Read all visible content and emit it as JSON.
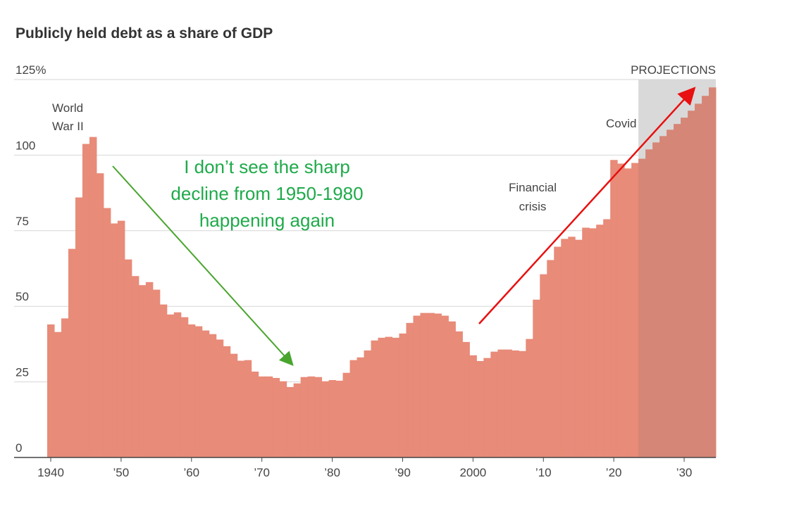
{
  "chart_data": {
    "type": "bar",
    "title": "Publicly held debt as a share of GDP",
    "x": [
      1940,
      1941,
      1942,
      1943,
      1944,
      1945,
      1946,
      1947,
      1948,
      1949,
      1950,
      1951,
      1952,
      1953,
      1954,
      1955,
      1956,
      1957,
      1958,
      1959,
      1960,
      1961,
      1962,
      1963,
      1964,
      1965,
      1966,
      1967,
      1968,
      1969,
      1970,
      1971,
      1972,
      1973,
      1974,
      1975,
      1976,
      1977,
      1978,
      1979,
      1980,
      1981,
      1982,
      1983,
      1984,
      1985,
      1986,
      1987,
      1988,
      1989,
      1990,
      1991,
      1992,
      1993,
      1994,
      1995,
      1996,
      1997,
      1998,
      1999,
      2000,
      2001,
      2002,
      2003,
      2004,
      2005,
      2006,
      2007,
      2008,
      2009,
      2010,
      2011,
      2012,
      2013,
      2014,
      2015,
      2016,
      2017,
      2018,
      2019,
      2020,
      2021,
      2022,
      2023,
      2024,
      2025,
      2026,
      2027,
      2028,
      2029,
      2030,
      2031,
      2032,
      2033,
      2034
    ],
    "values": [
      44,
      41.5,
      46,
      69,
      86,
      103.7,
      106,
      94,
      82.5,
      77.4,
      78.3,
      65.5,
      60,
      57,
      58,
      55.5,
      50.6,
      47.3,
      48,
      46.4,
      44,
      43.4,
      42,
      40.8,
      39,
      36.8,
      34.3,
      32,
      32.2,
      28.4,
      26.8,
      26.8,
      26.3,
      25.2,
      23.3,
      24.5,
      26.6,
      26.8,
      26.6,
      25.2,
      25.6,
      25.4,
      28,
      32.2,
      33.1,
      35.4,
      38.7,
      39.6,
      39.9,
      39.6,
      41,
      44.5,
      46.9,
      47.8,
      47.8,
      47.6,
      46.9,
      45,
      41.7,
      38.2,
      33.8,
      31.9,
      32.9,
      35,
      35.7,
      35.7,
      35.4,
      35.2,
      39.2,
      52.2,
      60.6,
      65.3,
      69.7,
      72.3,
      73,
      72,
      76,
      75.8,
      77,
      78.8,
      98.4,
      97.2,
      95.6,
      97.4,
      98.8,
      101.9,
      104.2,
      106.3,
      108.4,
      110.3,
      112.4,
      114.7,
      117,
      119.6,
      122.4
    ],
    "color": "#e88b79",
    "xlim": [
      1939.5,
      2034.5
    ],
    "xticks": [
      1940,
      {
        "value": 1950,
        "label": "’50"
      },
      {
        "value": 1960,
        "label": "’60"
      },
      {
        "value": 1970,
        "label": "’70"
      },
      {
        "value": 1980,
        "label": "’80"
      },
      {
        "value": 1990,
        "label": "’90"
      },
      2000,
      {
        "value": 2010,
        "label": "’10"
      },
      {
        "value": 2020,
        "label": "’20"
      },
      {
        "value": 2030,
        "label": "’30"
      }
    ],
    "ylim": [
      0,
      125
    ],
    "yticks": [
      0,
      25,
      50,
      75,
      100,
      {
        "value": 125,
        "label": "125%"
      }
    ],
    "grid": true,
    "projections": {
      "label": "PROJECTIONS",
      "from": 2024
    },
    "annotations": [
      {
        "lines": [
          "World",
          "War II"
        ]
      },
      {
        "lines": [
          "Covid"
        ]
      },
      {
        "lines": [
          "Financial",
          "crisis"
        ]
      },
      {
        "lines": [
          "I don’t see the sharp",
          "decline from 1950-1980",
          "happening again"
        ]
      }
    ]
  }
}
